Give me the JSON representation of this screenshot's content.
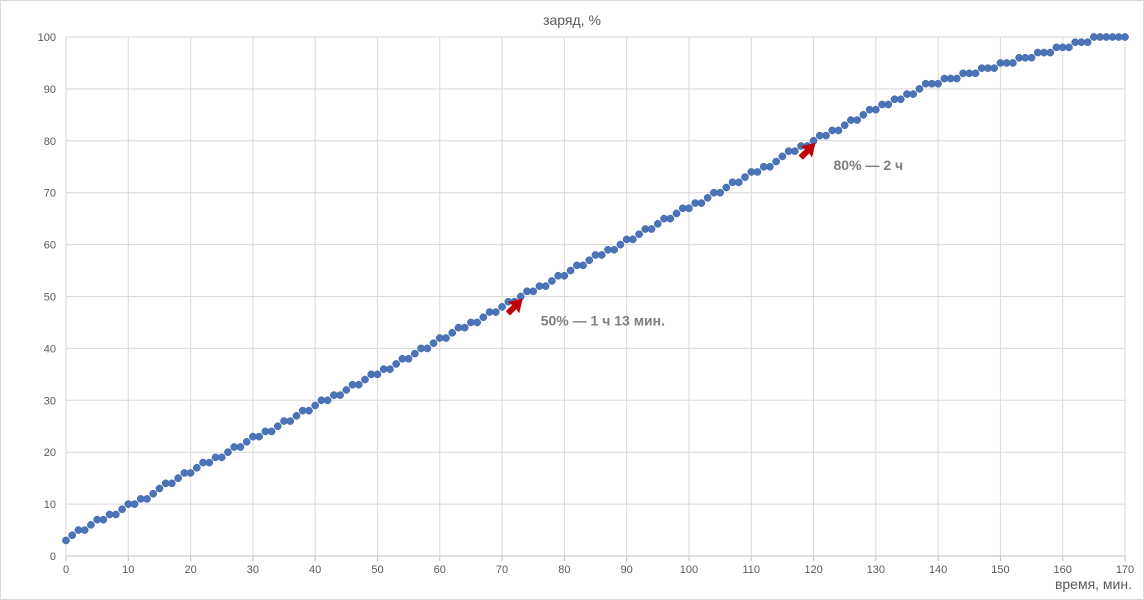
{
  "chart_data": {
    "type": "scatter",
    "title": "заряд, %",
    "xlabel": "время, мин.",
    "ylabel": "",
    "xlim": [
      0,
      170
    ],
    "ylim": [
      0,
      100
    ],
    "x_ticks": [
      0,
      10,
      20,
      30,
      40,
      50,
      60,
      70,
      80,
      90,
      100,
      110,
      120,
      130,
      140,
      150,
      160,
      170
    ],
    "y_ticks": [
      0,
      10,
      20,
      30,
      40,
      50,
      60,
      70,
      80,
      90,
      100
    ],
    "grid": true,
    "series": [
      {
        "color": "#4a74b7",
        "x": [
          0,
          1,
          2,
          3,
          4,
          5,
          6,
          7,
          8,
          9,
          10,
          11,
          12,
          13,
          14,
          15,
          16,
          17,
          18,
          19,
          20,
          21,
          22,
          23,
          24,
          25,
          26,
          27,
          28,
          29,
          30,
          31,
          32,
          33,
          34,
          35,
          36,
          37,
          38,
          39,
          40,
          41,
          42,
          43,
          44,
          45,
          46,
          47,
          48,
          49,
          50,
          51,
          52,
          53,
          54,
          55,
          56,
          57,
          58,
          59,
          60,
          61,
          62,
          63,
          64,
          65,
          66,
          67,
          68,
          69,
          70,
          71,
          72,
          73,
          74,
          75,
          76,
          77,
          78,
          79,
          80,
          81,
          82,
          83,
          84,
          85,
          86,
          87,
          88,
          89,
          90,
          91,
          92,
          93,
          94,
          95,
          96,
          97,
          98,
          99,
          100,
          101,
          102,
          103,
          104,
          105,
          106,
          107,
          108,
          109,
          110,
          111,
          112,
          113,
          114,
          115,
          116,
          117,
          118,
          119,
          120,
          121,
          122,
          123,
          124,
          125,
          126,
          127,
          128,
          129,
          130,
          131,
          132,
          133,
          134,
          135,
          136,
          137,
          138,
          139,
          140,
          141,
          142,
          143,
          144,
          145,
          146,
          147,
          148,
          149,
          150,
          151,
          152,
          153,
          154,
          155,
          156,
          157,
          158,
          159,
          160,
          161,
          162,
          163,
          164,
          165,
          166,
          167,
          168,
          169,
          170
        ],
        "y": [
          3,
          4,
          5,
          5,
          6,
          7,
          7,
          8,
          8,
          9,
          10,
          10,
          11,
          11,
          12,
          13,
          14,
          14,
          15,
          16,
          16,
          17,
          18,
          18,
          19,
          19,
          20,
          21,
          21,
          22,
          23,
          23,
          24,
          24,
          25,
          26,
          26,
          27,
          28,
          28,
          29,
          30,
          30,
          31,
          31,
          32,
          33,
          33,
          34,
          35,
          35,
          36,
          36,
          37,
          38,
          38,
          39,
          40,
          40,
          41,
          42,
          42,
          43,
          44,
          44,
          45,
          45,
          46,
          47,
          47,
          48,
          49,
          49,
          50,
          51,
          51,
          52,
          52,
          53,
          54,
          54,
          55,
          56,
          56,
          57,
          58,
          58,
          59,
          59,
          60,
          61,
          61,
          62,
          63,
          63,
          64,
          65,
          65,
          66,
          67,
          67,
          68,
          68,
          69,
          70,
          70,
          71,
          72,
          72,
          73,
          74,
          74,
          75,
          75,
          76,
          77,
          78,
          78,
          79,
          79,
          80,
          81,
          81,
          82,
          82,
          83,
          84,
          84,
          85,
          86,
          86,
          87,
          87,
          88,
          88,
          89,
          89,
          90,
          91,
          91,
          91,
          92,
          92,
          92,
          93,
          93,
          93,
          94,
          94,
          94,
          95,
          95,
          95,
          96,
          96,
          96,
          97,
          97,
          97,
          98,
          98,
          98,
          99,
          99,
          99,
          100,
          100,
          100,
          100,
          100,
          100
        ]
      }
    ],
    "annotations": [
      {
        "text": "50% — 1 ч 13 мин.",
        "x": 73,
        "y": 50
      },
      {
        "text": "80% — 2 ч",
        "x": 120,
        "y": 80
      }
    ]
  }
}
